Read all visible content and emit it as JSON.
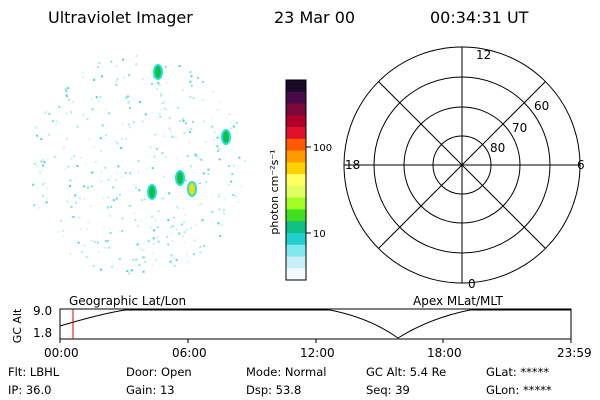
{
  "header": {
    "instrument": "Ultraviolet Imager",
    "date": "23 Mar 00",
    "time": "00:34:31 UT"
  },
  "colorbar": {
    "unit_label": "photon cm⁻²s⁻¹",
    "tick_100": "100",
    "tick_10": "10",
    "colors": [
      "#1a0a2a",
      "#4a0a4a",
      "#7a0a3a",
      "#b0002a",
      "#e0102a",
      "#ff5a00",
      "#ff9a00",
      "#ffd000",
      "#ffff60",
      "#e0ff60",
      "#a0ff20",
      "#40e020",
      "#10c080",
      "#20d0d0",
      "#80e8ef",
      "#c8f0f8",
      "#f4f8ff"
    ]
  },
  "polar": {
    "mlt_labels": {
      "top": "12",
      "bottom": "0",
      "left": "18",
      "right": "6"
    },
    "lat_labels": [
      "60",
      "70",
      "80"
    ]
  },
  "image_panel": {
    "bright_spot_colors": [
      "#10c040",
      "#f0e000",
      "#20e0e0"
    ]
  },
  "track": {
    "left_label": "Geographic Lat/Lon",
    "right_label": "Apex MLat/MLT",
    "axis_title": "GC Alt",
    "y_top": "9.0",
    "y_bottom": "1.8",
    "x_ticks": [
      "00:00",
      "06:00",
      "12:00",
      "18:00",
      "23:59"
    ],
    "marker_color": "#e00000"
  },
  "status": {
    "filter": "Flt: LBHL",
    "ip": "IP: 36.0",
    "door": "Door: Open",
    "gain": "Gain: 13",
    "mode": "Mode: Normal",
    "dsp": "Dsp:    53.8",
    "gc_alt": "GC Alt: 5.4 Re",
    "seq": "Seq: 39",
    "glat": "GLat: *****",
    "glon": "GLon: *****"
  }
}
